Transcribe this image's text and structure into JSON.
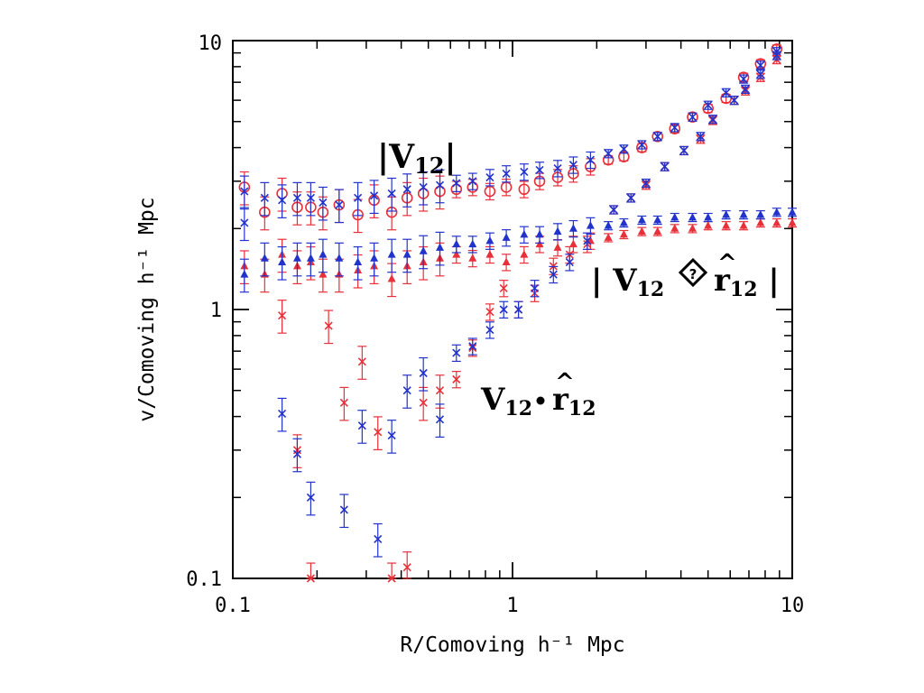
{
  "chart_data": {
    "type": "scatter",
    "xscale": "log",
    "yscale": "log",
    "xlim": [
      0.1,
      10
    ],
    "ylim": [
      0.1,
      10
    ],
    "xlabel": "R/Comoving h⁻¹ Mpc",
    "ylabel": "v/Comoving h⁻¹ Mpc",
    "x_tick_labels": [
      "0.1",
      "1",
      "10"
    ],
    "y_tick_labels": [
      "0.1",
      "1",
      "10"
    ],
    "grid": false,
    "legend": "none",
    "annotations": [
      {
        "text": "|V12|"
      },
      {
        "text": "| V12 ◇ r̂12 |"
      },
      {
        "text": "V12 • r̂12"
      }
    ],
    "series": [
      {
        "color": "#e8303a",
        "marker": "circle",
        "points": [
          [
            0.11,
            2.85
          ],
          [
            0.13,
            2.3
          ],
          [
            0.15,
            2.7
          ],
          [
            0.17,
            2.4
          ],
          [
            0.19,
            2.4
          ],
          [
            0.21,
            2.3
          ],
          [
            0.24,
            2.45
          ],
          [
            0.28,
            2.25
          ],
          [
            0.32,
            2.55
          ],
          [
            0.37,
            2.3
          ],
          [
            0.42,
            2.6
          ],
          [
            0.48,
            2.7
          ],
          [
            0.55,
            2.75
          ],
          [
            0.63,
            2.8
          ],
          [
            0.72,
            2.85
          ],
          [
            0.83,
            2.75
          ],
          [
            0.95,
            2.85
          ],
          [
            1.1,
            2.8
          ],
          [
            1.25,
            3.0
          ],
          [
            1.45,
            3.1
          ],
          [
            1.65,
            3.2
          ],
          [
            1.9,
            3.4
          ],
          [
            2.2,
            3.6
          ],
          [
            2.5,
            3.7
          ],
          [
            2.9,
            4.0
          ],
          [
            3.3,
            4.4
          ],
          [
            3.8,
            4.7
          ],
          [
            4.4,
            5.2
          ],
          [
            5.0,
            5.6
          ],
          [
            5.8,
            6.1
          ],
          [
            6.7,
            7.3
          ],
          [
            7.7,
            8.2
          ],
          [
            8.8,
            9.3
          ]
        ]
      },
      {
        "color": "#2233cc",
        "marker": "x",
        "points": [
          [
            0.11,
            2.75
          ],
          [
            0.13,
            2.6
          ],
          [
            0.15,
            2.55
          ],
          [
            0.17,
            2.6
          ],
          [
            0.19,
            2.6
          ],
          [
            0.21,
            2.5
          ],
          [
            0.24,
            2.45
          ],
          [
            0.28,
            2.6
          ],
          [
            0.32,
            2.65
          ],
          [
            0.37,
            2.7
          ],
          [
            0.42,
            2.8
          ],
          [
            0.48,
            2.85
          ],
          [
            0.55,
            2.9
          ],
          [
            0.63,
            2.95
          ],
          [
            0.72,
            3.0
          ],
          [
            0.83,
            3.1
          ],
          [
            0.95,
            3.2
          ],
          [
            1.1,
            3.25
          ],
          [
            1.25,
            3.3
          ],
          [
            1.45,
            3.35
          ],
          [
            1.65,
            3.45
          ],
          [
            1.9,
            3.6
          ],
          [
            2.2,
            3.8
          ],
          [
            2.5,
            3.95
          ],
          [
            2.9,
            4.1
          ],
          [
            3.3,
            4.4
          ],
          [
            3.8,
            4.75
          ],
          [
            4.4,
            5.2
          ],
          [
            5.0,
            5.75
          ],
          [
            5.8,
            6.4
          ],
          [
            6.7,
            7.2
          ],
          [
            7.7,
            8.1
          ],
          [
            8.8,
            9.1
          ]
        ]
      },
      {
        "color": "#e8303a",
        "marker": "triangle",
        "points": [
          [
            0.11,
            1.45
          ],
          [
            0.13,
            1.35
          ],
          [
            0.15,
            1.6
          ],
          [
            0.17,
            1.45
          ],
          [
            0.19,
            1.5
          ],
          [
            0.21,
            1.35
          ],
          [
            0.24,
            1.35
          ],
          [
            0.28,
            1.4
          ],
          [
            0.32,
            1.45
          ],
          [
            0.37,
            1.3
          ],
          [
            0.42,
            1.45
          ],
          [
            0.48,
            1.5
          ],
          [
            0.55,
            1.55
          ],
          [
            0.63,
            1.6
          ],
          [
            0.72,
            1.55
          ],
          [
            0.83,
            1.6
          ],
          [
            0.95,
            1.5
          ],
          [
            1.1,
            1.6
          ],
          [
            1.25,
            1.75
          ],
          [
            1.45,
            1.7
          ],
          [
            1.65,
            1.75
          ],
          [
            1.9,
            1.8
          ],
          [
            2.2,
            1.85
          ],
          [
            2.5,
            1.9
          ],
          [
            2.9,
            1.95
          ],
          [
            3.3,
            1.95
          ],
          [
            3.8,
            2.0
          ],
          [
            4.4,
            2.0
          ],
          [
            5.0,
            2.05
          ],
          [
            5.8,
            2.05
          ],
          [
            6.7,
            2.05
          ],
          [
            7.7,
            2.1
          ],
          [
            8.8,
            2.1
          ],
          [
            10.0,
            2.1
          ]
        ]
      },
      {
        "color": "#2233cc",
        "marker": "triangle",
        "points": [
          [
            0.11,
            1.35
          ],
          [
            0.13,
            1.55
          ],
          [
            0.15,
            1.5
          ],
          [
            0.17,
            1.55
          ],
          [
            0.19,
            1.55
          ],
          [
            0.21,
            1.6
          ],
          [
            0.24,
            1.55
          ],
          [
            0.28,
            1.5
          ],
          [
            0.32,
            1.55
          ],
          [
            0.37,
            1.6
          ],
          [
            0.42,
            1.6
          ],
          [
            0.48,
            1.65
          ],
          [
            0.55,
            1.7
          ],
          [
            0.63,
            1.75
          ],
          [
            0.72,
            1.75
          ],
          [
            0.83,
            1.8
          ],
          [
            0.95,
            1.85
          ],
          [
            1.1,
            1.9
          ],
          [
            1.25,
            1.9
          ],
          [
            1.45,
            1.95
          ],
          [
            1.65,
            2.0
          ],
          [
            1.9,
            2.05
          ],
          [
            2.2,
            2.05
          ],
          [
            2.5,
            2.1
          ],
          [
            2.9,
            2.15
          ],
          [
            3.3,
            2.15
          ],
          [
            3.8,
            2.2
          ],
          [
            4.4,
            2.2
          ],
          [
            5.0,
            2.2
          ],
          [
            5.8,
            2.25
          ],
          [
            6.7,
            2.25
          ],
          [
            7.7,
            2.25
          ],
          [
            8.8,
            2.3
          ],
          [
            10.0,
            2.3
          ]
        ]
      },
      {
        "color": "#e8303a",
        "marker": "x",
        "points": [
          [
            0.15,
            0.95
          ],
          [
            0.17,
            0.3
          ],
          [
            0.19,
            0.1
          ],
          [
            0.22,
            0.87
          ],
          [
            0.25,
            0.45
          ],
          [
            0.29,
            0.64
          ],
          [
            0.33,
            0.35
          ],
          [
            0.37,
            0.1
          ],
          [
            0.42,
            0.11
          ],
          [
            0.48,
            0.45
          ],
          [
            0.55,
            0.5
          ],
          [
            0.63,
            0.55
          ],
          [
            0.72,
            0.72
          ],
          [
            0.83,
            0.98
          ],
          [
            0.93,
            1.2
          ],
          [
            1.05,
            1.0
          ],
          [
            1.2,
            1.15
          ],
          [
            1.4,
            1.45
          ],
          [
            1.6,
            1.6
          ],
          [
            1.85,
            1.75
          ],
          [
            2.3,
            2.35
          ],
          [
            2.65,
            2.6
          ],
          [
            3.0,
            2.9
          ],
          [
            3.5,
            3.4
          ],
          [
            4.1,
            3.9
          ],
          [
            4.7,
            4.3
          ],
          [
            5.2,
            5.05
          ],
          [
            6.2,
            6.0
          ],
          [
            6.8,
            6.5
          ],
          [
            7.7,
            7.3
          ],
          [
            8.8,
            8.5
          ]
        ]
      },
      {
        "color": "#2233cc",
        "marker": "x",
        "points": [
          [
            0.11,
            2.1
          ],
          [
            0.15,
            0.41
          ],
          [
            0.17,
            0.29
          ],
          [
            0.19,
            0.2
          ],
          [
            0.25,
            0.18
          ],
          [
            0.29,
            0.37
          ],
          [
            0.33,
            0.14
          ],
          [
            0.37,
            0.34
          ],
          [
            0.42,
            0.5
          ],
          [
            0.48,
            0.58
          ],
          [
            0.55,
            0.39
          ],
          [
            0.63,
            0.69
          ],
          [
            0.72,
            0.73
          ],
          [
            0.83,
            0.84
          ],
          [
            0.93,
            1.0
          ],
          [
            1.05,
            1.0
          ],
          [
            1.2,
            1.2
          ],
          [
            1.4,
            1.35
          ],
          [
            1.6,
            1.5
          ],
          [
            1.85,
            1.8
          ],
          [
            2.3,
            2.35
          ],
          [
            2.65,
            2.6
          ],
          [
            3.0,
            2.95
          ],
          [
            3.5,
            3.4
          ],
          [
            4.1,
            3.9
          ],
          [
            4.7,
            4.4
          ],
          [
            5.2,
            5.1
          ],
          [
            6.2,
            6.0
          ],
          [
            6.8,
            6.6
          ],
          [
            7.7,
            7.5
          ],
          [
            8.8,
            8.8
          ]
        ]
      }
    ]
  }
}
